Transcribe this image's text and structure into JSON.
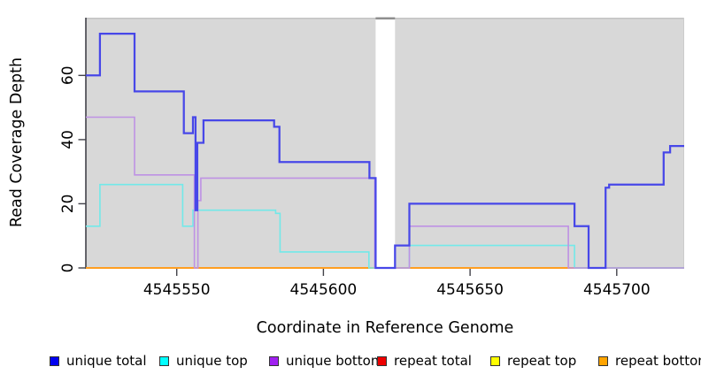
{
  "figure": {
    "outer_background": "#ffffff",
    "panel_background": "#d8d8d8",
    "panel_border_color": "#c3c3c3",
    "gap_border_color": "#8f8f8f",
    "axis_line_color": "#42424a",
    "text_color": "#000000"
  },
  "y_axis": {
    "label": "Read Coverage Depth",
    "tick_labels": [
      "0",
      "20",
      "40",
      "60"
    ],
    "tick_values": [
      0,
      20,
      40,
      60
    ]
  },
  "x_axis": {
    "label": "Coordinate in Reference Genome",
    "tick_labels": [
      "4545550",
      "4545600",
      "4545650",
      "4545700"
    ],
    "tick_values": [
      4545550,
      4545600,
      4545650,
      4545700
    ]
  },
  "legend": {
    "items": [
      {
        "label": "unique total",
        "color": "#0000f0"
      },
      {
        "label": "unique top",
        "color": "#00ffff"
      },
      {
        "label": "unique bottom",
        "color": "#a020f0"
      },
      {
        "label": "repeat total",
        "color": "#ee0000"
      },
      {
        "label": "repeat top",
        "color": "#ffff00"
      },
      {
        "label": "repeat bottom",
        "color": "#ffa400"
      }
    ]
  },
  "chart_data": {
    "type": "line",
    "subtype": "step-coverage",
    "title": "",
    "xlabel": "Coordinate in Reference Genome",
    "ylabel": "Read Coverage Depth",
    "xlim": [
      4545519,
      4545723
    ],
    "ylim": [
      0,
      78
    ],
    "x_ticks": [
      4545550,
      4545600,
      4545650,
      4545700
    ],
    "y_ticks": [
      0,
      20,
      40,
      60
    ],
    "grid": false,
    "legend_position": "bottom",
    "masked_region": {
      "x_start": 4545617.8,
      "x_end": 4545624.4
    },
    "series": [
      {
        "name": "unique total",
        "legend_color": "#0000f0",
        "line_color": "#4747e8",
        "steps": [
          [
            4545519,
            60
          ],
          [
            4545523.8,
            73
          ],
          [
            4545535.6,
            55
          ],
          [
            4545552.4,
            42
          ],
          [
            4545555.5,
            47
          ],
          [
            4545556.4,
            18
          ],
          [
            4545557,
            39
          ],
          [
            4545559.1,
            46
          ],
          [
            4545583.2,
            44
          ],
          [
            4545585,
            33
          ],
          [
            4545615.7,
            28
          ],
          [
            4545617.8,
            0
          ],
          [
            4545624.4,
            7
          ],
          [
            4545629.3,
            20
          ],
          [
            4545685.6,
            13
          ],
          [
            4545690.4,
            0
          ],
          [
            4545696.2,
            25
          ],
          [
            4545697.4,
            26
          ],
          [
            4545716,
            36
          ],
          [
            4545718.2,
            38
          ]
        ],
        "x_end": 4545723
      },
      {
        "name": "unique top",
        "legend_color": "#00ffff",
        "line_color": "#72e9e9",
        "steps": [
          [
            4545519,
            13
          ],
          [
            4545523.8,
            26
          ],
          [
            4545552,
            13
          ],
          [
            4545555.5,
            18
          ],
          [
            4545583.7,
            17
          ],
          [
            4545585.2,
            5
          ],
          [
            4545615.5,
            0
          ],
          [
            4545629.3,
            7
          ],
          [
            4545685.6,
            0
          ]
        ],
        "x_end": 4545723
      },
      {
        "name": "unique bottom",
        "legend_color": "#a020f0",
        "line_color": "#be92e4",
        "steps": [
          [
            4545519,
            47
          ],
          [
            4545535.6,
            29
          ],
          [
            4545556,
            0
          ],
          [
            4545557.2,
            21
          ],
          [
            4545558.2,
            28
          ],
          [
            4545617.5,
            0
          ],
          [
            4545629.3,
            13
          ],
          [
            4545683.5,
            0
          ]
        ],
        "x_end": 4545723
      },
      {
        "name": "repeat total",
        "legend_color": "#ee0000",
        "line_color": "#ee3333",
        "steps": [
          [
            4545519,
            0
          ]
        ],
        "x_end": 4545723
      },
      {
        "name": "repeat top",
        "legend_color": "#ffff00",
        "line_color": "#ffff33",
        "steps": [
          [
            4545519,
            0
          ]
        ],
        "x_end": 4545723
      },
      {
        "name": "repeat bottom",
        "legend_color": "#ffa400",
        "line_color": "#ff9e21",
        "steps": [
          [
            4545519,
            0
          ]
        ],
        "x_end": 4545723
      }
    ],
    "bottom_overlap_segment": {
      "note": "overlapping zero-depth lines render pale green right of x=4545686",
      "x_start": 4545685.6,
      "x_end": 4545723,
      "value": 0,
      "color": "#8fcf8f"
    }
  }
}
